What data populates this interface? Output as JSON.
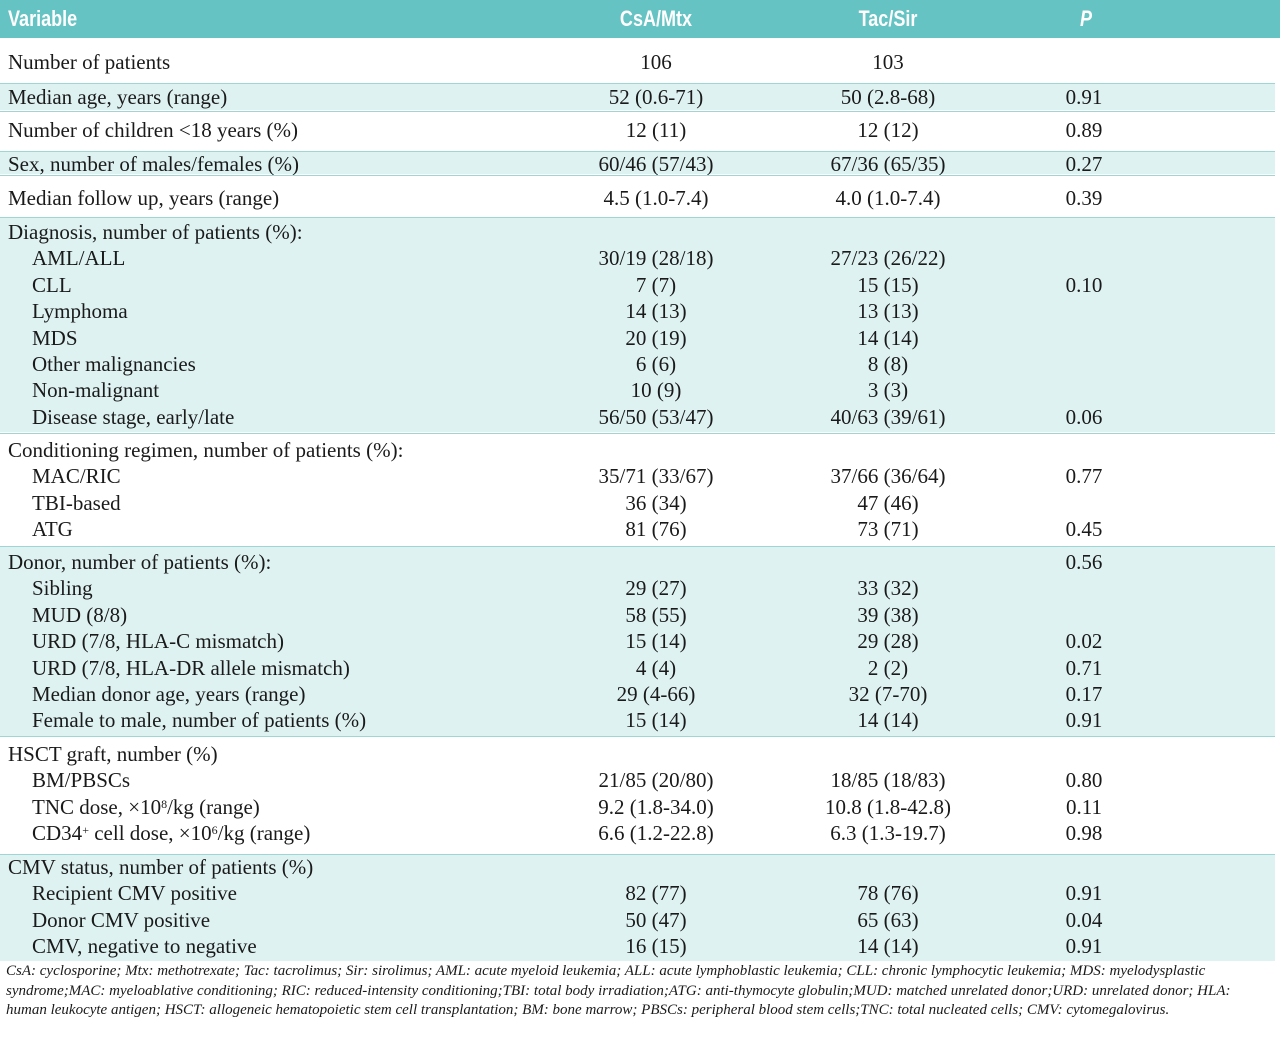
{
  "header": {
    "variable": "Variable",
    "csa": "CsA/Mtx",
    "tac": "Tac/Sir",
    "p": "P"
  },
  "sections": [
    {
      "shaded": false,
      "rows": [
        {
          "variable": "Number of patients",
          "csa": "106",
          "tac": "103",
          "p": ""
        }
      ]
    },
    {
      "shaded": true,
      "rows": [
        {
          "variable": "Median age, years (range)",
          "csa": "52 (0.6-71)",
          "tac": "50 (2.8-68)",
          "p": "0.91"
        }
      ]
    },
    {
      "shaded": false,
      "rows": [
        {
          "variable": "Number of children <18 years (%)",
          "csa": "12 (11)",
          "tac": "12 (12)",
          "p": "0.89"
        }
      ]
    },
    {
      "shaded": true,
      "rows": [
        {
          "variable": "Sex, number of males/females (%)",
          "csa": "60/46 (57/43)",
          "tac": "67/36 (65/35)",
          "p": "0.27"
        }
      ]
    },
    {
      "shaded": false,
      "rows": [
        {
          "variable": "Median follow up, years (range)",
          "csa": "4.5 (1.0-7.4)",
          "tac": "4.0 (1.0-7.4)",
          "p": "0.39"
        }
      ]
    },
    {
      "shaded": true,
      "rows": [
        {
          "variable": "Diagnosis, number of patients (%):",
          "csa": "",
          "tac": "",
          "p": ""
        },
        {
          "variable": "AML/ALL",
          "csa": "30/19 (28/18)",
          "tac": "27/23 (26/22)",
          "p": ""
        },
        {
          "variable": "CLL",
          "csa": "7 (7)",
          "tac": "15 (15)",
          "p": "0.10"
        },
        {
          "variable": "Lymphoma",
          "csa": "14 (13)",
          "tac": "13 (13)",
          "p": ""
        },
        {
          "variable": "MDS",
          "csa": "20 (19)",
          "tac": "14 (14)",
          "p": ""
        },
        {
          "variable": "Other malignancies",
          "csa": "6 (6)",
          "tac": "8 (8)",
          "p": ""
        },
        {
          "variable": "Non-malignant",
          "csa": "10 (9)",
          "tac": "3 (3)",
          "p": ""
        },
        {
          "variable": "Disease stage, early/late",
          "csa": "56/50 (53/47)",
          "tac": "40/63 (39/61)",
          "p": "0.06"
        }
      ]
    },
    {
      "shaded": false,
      "rows": [
        {
          "variable": "Conditioning regimen, number of patients (%):",
          "csa": "",
          "tac": "",
          "p": ""
        },
        {
          "variable": "MAC/RIC",
          "csa": "35/71 (33/67)",
          "tac": "37/66 (36/64)",
          "p": "0.77"
        },
        {
          "variable": "TBI-based",
          "csa": "36 (34)",
          "tac": "47 (46)",
          "p": ""
        },
        {
          "variable": "ATG",
          "csa": "81 (76)",
          "tac": "73 (71)",
          "p": "0.45"
        }
      ]
    },
    {
      "shaded": true,
      "rows": [
        {
          "variable": "Donor, number of patients (%):",
          "csa": "",
          "tac": "",
          "p": "0.56"
        },
        {
          "variable": "Sibling",
          "csa": "29 (27)",
          "tac": "33 (32)",
          "p": ""
        },
        {
          "variable": "MUD (8/8)",
          "csa": "58 (55)",
          "tac": "39 (38)",
          "p": ""
        },
        {
          "variable": "URD (7/8, HLA-C mismatch)",
          "csa": "15 (14)",
          "tac": "29 (28)",
          "p": "0.02"
        },
        {
          "variable": "URD (7/8, HLA-DR allele mismatch)",
          "csa": "4 (4)",
          "tac": "2 (2)",
          "p": "0.71"
        },
        {
          "variable": "Median donor age, years (range)",
          "csa": "29 (4-66)",
          "tac": "32 (7-70)",
          "p": "0.17"
        },
        {
          "variable": "Female to male, number of patients (%)",
          "csa": "15 (14)",
          "tac": "14 (14)",
          "p": "0.91"
        }
      ]
    },
    {
      "shaded": false,
      "rows": [
        {
          "variable": "HSCT graft, number (%)",
          "csa": "",
          "tac": "",
          "p": ""
        },
        {
          "variable": "BM/PBSCs",
          "csa": "21/85 (20/80)",
          "tac": "18/85 (18/83)",
          "p": "0.80"
        },
        {
          "variable_pre": "TNC dose, ×10",
          "variable_sup": "8",
          "variable_post": "/kg (range)",
          "csa": "9.2 (1.8-34.0)",
          "tac": "10.8 (1.8-42.8)",
          "p": "0.11"
        },
        {
          "variable_pre": "CD34",
          "variable_sup": "+",
          "variable_post": " cell dose, ×10",
          "variable_sup2": "6",
          "variable_post2": "/kg (range)",
          "csa": "6.6 (1.2-22.8)",
          "tac": "6.3 (1.3-19.7)",
          "p": "0.98"
        }
      ]
    },
    {
      "shaded": true,
      "rows": [
        {
          "variable": "CMV status, number of patients (%)",
          "csa": "",
          "tac": "",
          "p": ""
        },
        {
          "variable": "Recipient CMV positive",
          "csa": "82 (77)",
          "tac": "78 (76)",
          "p": "0.91"
        },
        {
          "variable": "Donor CMV positive",
          "csa": "50 (47)",
          "tac": "65 (63)",
          "p": "0.04"
        },
        {
          "variable": "CMV, negative to negative",
          "csa": "16 (15)",
          "tac": "14 (14)",
          "p": "0.91"
        }
      ]
    }
  ],
  "footnote": "CsA: cyclosporine; Mtx: methotrexate; Tac: tacrolimus; Sir: sirolimus; AML: acute myeloid leukemia; ALL: acute lymphoblastic leukemia; CLL: chronic lymphocytic leukemia; MDS: myelodysplastic syndrome;MAC: myeloablative conditioning; RIC: reduced-intensity conditioning;TBI: total body irradiation;ATG: anti-thymocyte globulin;MUD: matched unrelated donor;URD: unrelated donor; HLA: human leukocyte antigen; HSCT: allogeneic hematopoietic stem cell transplantation; BM: bone marrow; PBSCs: peripheral blood stem cells;TNC: total nucleated cells; CMV: cytomegalovirus."
}
